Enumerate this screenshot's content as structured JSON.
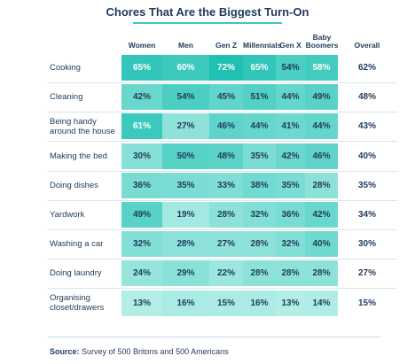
{
  "chart_data": {
    "type": "table",
    "title": "Chores That Are the Biggest Turn-On",
    "columns": [
      "Women",
      "Men",
      "Gen Z",
      "Millennials",
      "Gen X",
      "Baby Boomers",
      "Overall"
    ],
    "rows": [
      {
        "label": "Cooking",
        "values": [
          "65%",
          "60%",
          "72%",
          "65%",
          "54%",
          "58%",
          "62%"
        ]
      },
      {
        "label": "Cleaning",
        "values": [
          "42%",
          "54%",
          "45%",
          "51%",
          "44%",
          "49%",
          "48%"
        ]
      },
      {
        "label": "Being handy around the house",
        "values": [
          "61%",
          "27%",
          "46%",
          "44%",
          "41%",
          "44%",
          "43%"
        ]
      },
      {
        "label": "Making the bed",
        "values": [
          "30%",
          "50%",
          "48%",
          "35%",
          "42%",
          "46%",
          "40%"
        ]
      },
      {
        "label": "Doing dishes",
        "values": [
          "36%",
          "35%",
          "33%",
          "38%",
          "35%",
          "28%",
          "35%"
        ]
      },
      {
        "label": "Yardwork",
        "values": [
          "49%",
          "19%",
          "28%",
          "32%",
          "36%",
          "42%",
          "34%"
        ]
      },
      {
        "label": "Washing a car",
        "values": [
          "32%",
          "28%",
          "27%",
          "28%",
          "32%",
          "40%",
          "30%"
        ]
      },
      {
        "label": "Doing laundry",
        "values": [
          "24%",
          "29%",
          "22%",
          "28%",
          "28%",
          "28%",
          "27%"
        ]
      },
      {
        "label": "Organising closet/drawers",
        "values": [
          "13%",
          "16%",
          "15%",
          "16%",
          "13%",
          "14%",
          "15%"
        ]
      }
    ],
    "source_label": "Source:",
    "source_text": " Survey of 500 Britons and 500 Americans",
    "colors": {
      "text": "#1f3a5a",
      "accent": "#3cc9bd",
      "heat_low": "#b9efe9",
      "heat_high": "#1fc1b3"
    }
  }
}
